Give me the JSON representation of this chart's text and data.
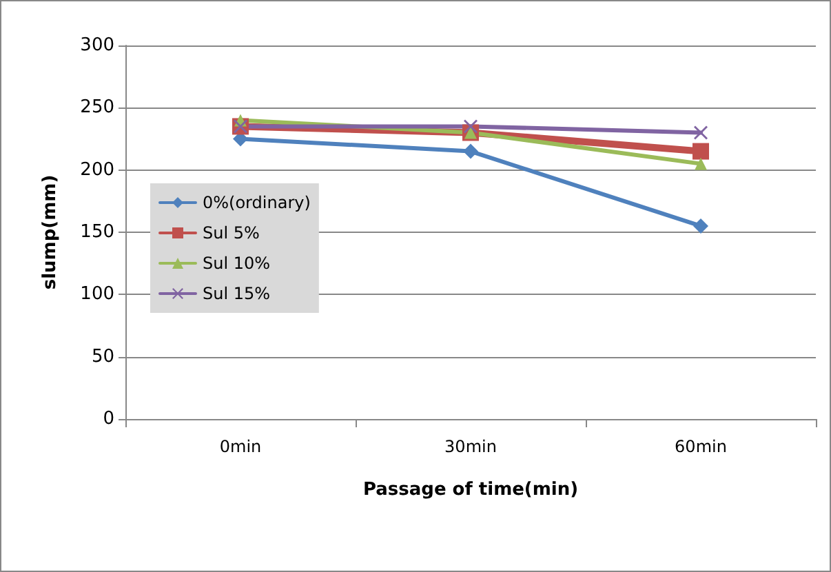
{
  "chart_data": {
    "type": "line",
    "xlabel": "Passage of time(min)",
    "ylabel": "slump(mm)",
    "categories": [
      "0min",
      "30min",
      "60min"
    ],
    "series": [
      {
        "name": "0%(ordinary)",
        "color": "#4f81bd",
        "marker": "diamond",
        "values": [
          225,
          215,
          155
        ]
      },
      {
        "name": "Sul 5%",
        "color": "#c0504d",
        "marker": "square",
        "values": [
          235,
          230,
          215
        ]
      },
      {
        "name": "Sul 10%",
        "color": "#9bbb59",
        "marker": "triangle",
        "values": [
          240,
          230,
          205
        ]
      },
      {
        "name": "Sul 15%",
        "color": "#8064a2",
        "marker": "cross",
        "values": [
          235,
          235,
          230
        ]
      }
    ],
    "ylim": [
      0,
      300
    ],
    "yticks": [
      0,
      50,
      100,
      150,
      200,
      250,
      300
    ],
    "grid": "y",
    "legend": "left"
  }
}
